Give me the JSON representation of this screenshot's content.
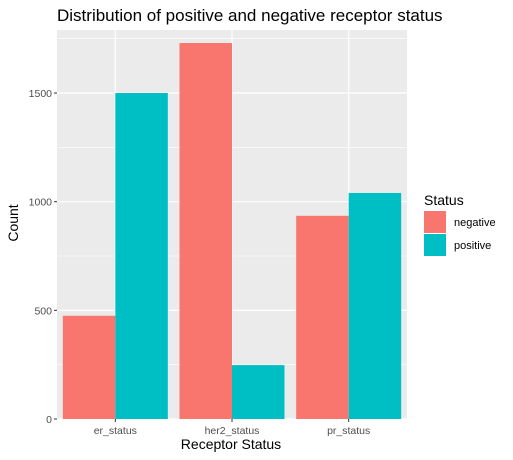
{
  "chart_data": {
    "type": "bar",
    "title": "Distribution of positive and negative receptor status",
    "xlabel": "Receptor Status",
    "ylabel": "Count",
    "categories": [
      "er_status",
      "her2_status",
      "pr_status"
    ],
    "series": [
      {
        "name": "negative",
        "values": [
          475,
          1730,
          935
        ],
        "color": "#F8766D"
      },
      {
        "name": "positive",
        "values": [
          1500,
          248,
          1040
        ],
        "color": "#00BFC4"
      }
    ],
    "ylim": [
      0,
      1790
    ],
    "yticks": [
      0,
      500,
      1000,
      1500
    ],
    "ytick_labels": [
      "0",
      "500",
      "1000",
      "1500"
    ],
    "grid": true,
    "panel_color": "#EBEBEB",
    "legend": {
      "title": "Status",
      "placement": "right"
    }
  }
}
